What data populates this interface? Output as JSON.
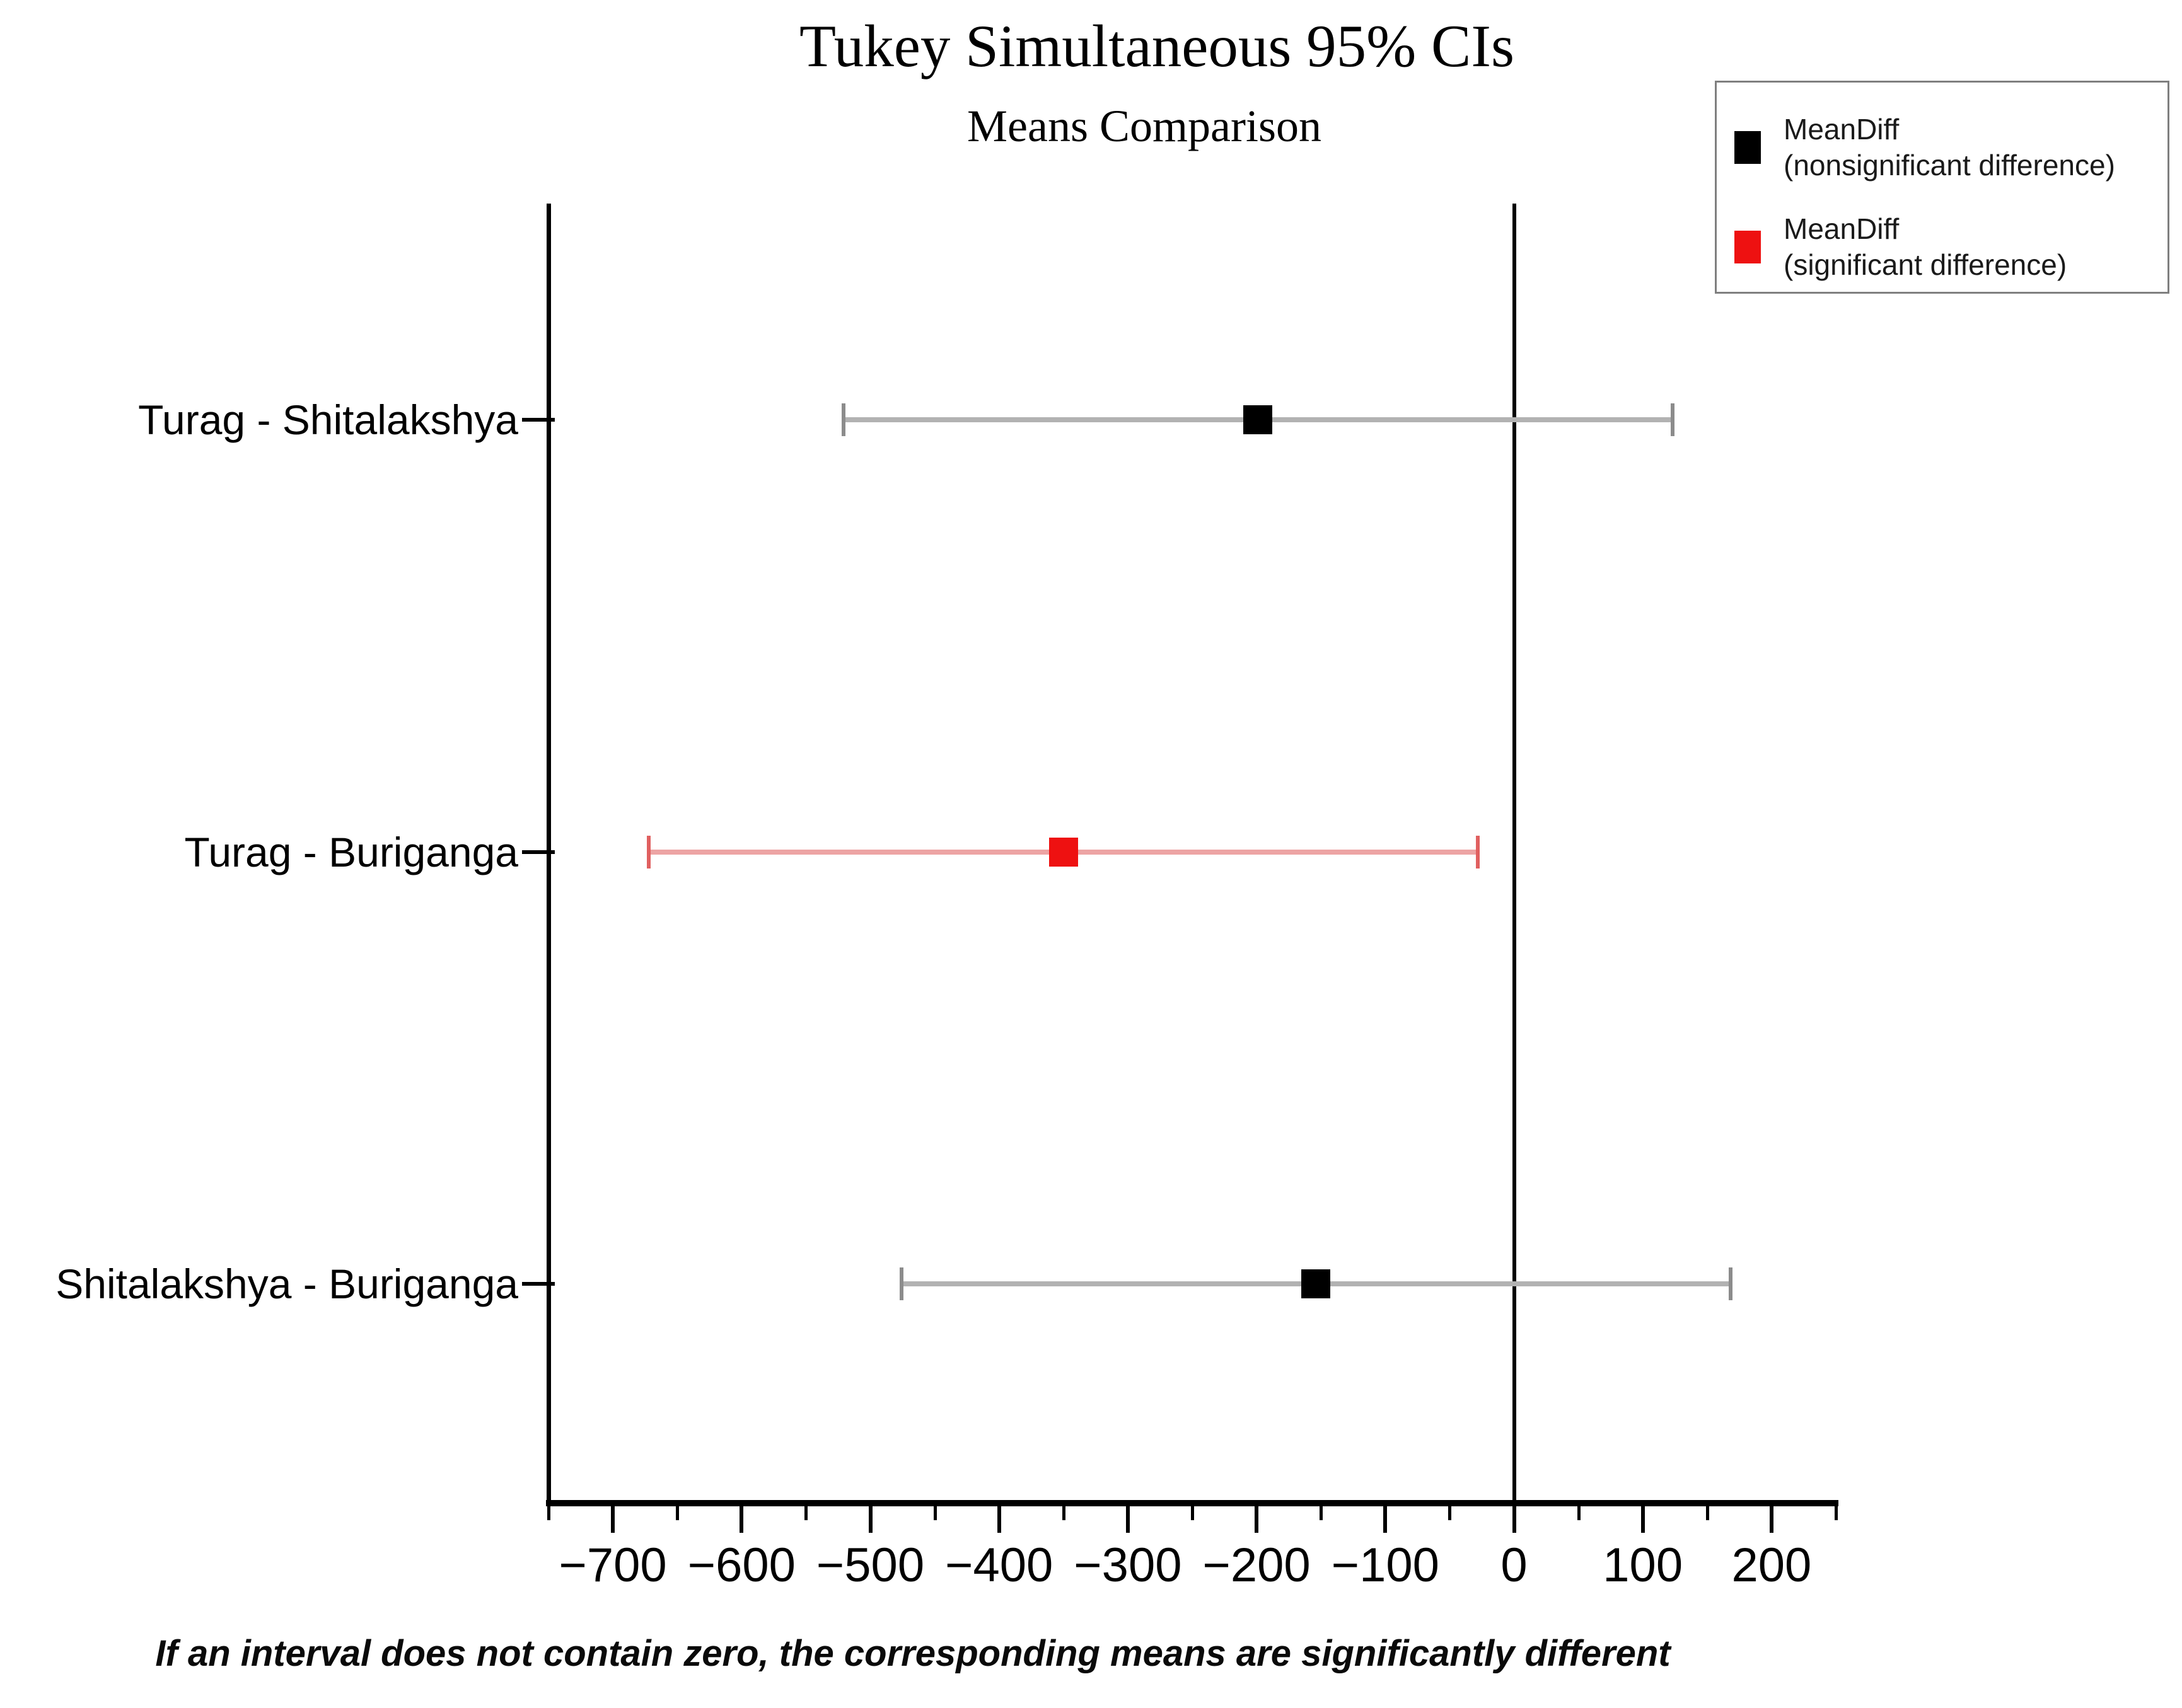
{
  "title": "Tukey Simultaneous 95% CIs",
  "subtitle": "Means Comparison",
  "footer": "If an interval does not contain zero, the corresponding means are significantly different",
  "legend": {
    "items": [
      {
        "label_line1": "MeanDiff",
        "label_line2": "(nonsignificant difference)",
        "color": "#000000"
      },
      {
        "label_line1": "MeanDiff",
        "label_line2": "(significant difference)",
        "color": "#ee1111"
      }
    ]
  },
  "chart_data": {
    "type": "scatter",
    "subtype": "interval-plot-with-error-bars",
    "title": "Tukey Simultaneous 95% CIs",
    "subtitle": "Means Comparison",
    "categories": [
      "Turag - Shitalakshya",
      "Turag - Buriganga",
      "Shitalakshya - Buriganga"
    ],
    "series": [
      {
        "name": "MeanDiff",
        "points": [
          {
            "comparison": "Turag - Shitalakshya",
            "mean_diff": -199,
            "ci_low": -521,
            "ci_high": 123,
            "significant": false
          },
          {
            "comparison": "Turag - Buriganga",
            "mean_diff": -350,
            "ci_low": -672,
            "ci_high": -28,
            "significant": true
          },
          {
            "comparison": "Shitalakshya - Buriganga",
            "mean_diff": -154,
            "ci_low": -476,
            "ci_high": 168,
            "significant": false
          }
        ]
      }
    ],
    "xlabel": "",
    "ylabel": "",
    "xlim": [
      -750,
      250
    ],
    "x_major_ticks": [
      -700,
      -600,
      -500,
      -400,
      -300,
      -200,
      -100,
      0,
      100,
      200
    ],
    "x_minor_ticks": [
      -750,
      -650,
      -550,
      -450,
      -350,
      -250,
      -150,
      -50,
      50,
      150,
      250
    ],
    "zero_reference_line": 0,
    "grid": false,
    "legend_position": "top-right",
    "style": {
      "nonsignificant": {
        "line": "#b2b2b2",
        "cap": "#8c8c8c",
        "marker": "#000000"
      },
      "significant": {
        "line": "#edodod-placeholder",
        "cap": "#e06060",
        "marker": "#ee1111"
      }
    }
  }
}
